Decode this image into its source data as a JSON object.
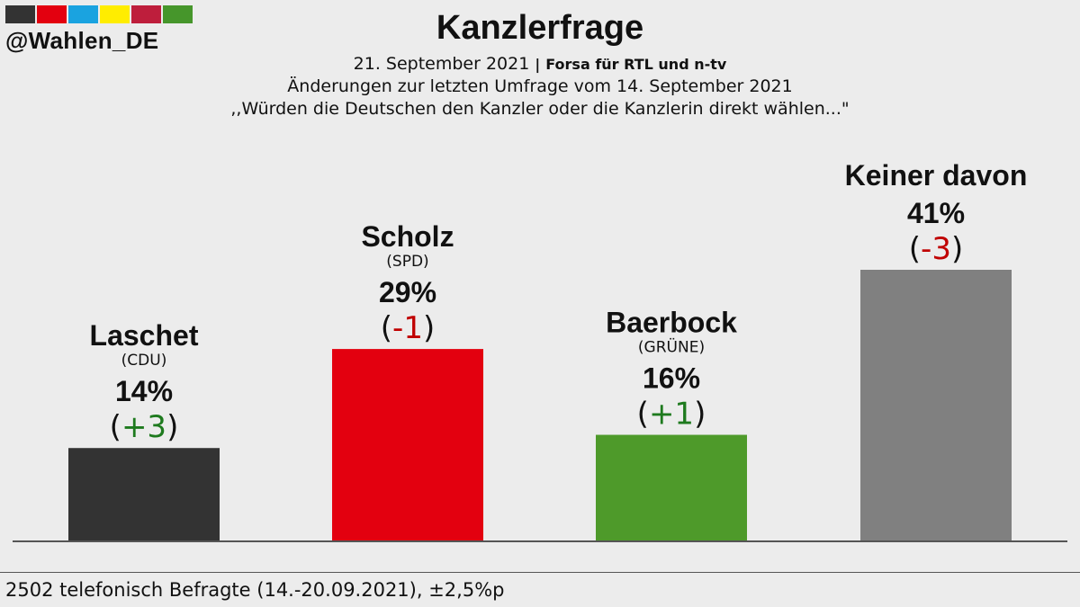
{
  "header": {
    "handle": "@Wahlen_DE",
    "logo_colors": [
      "#333333",
      "#e3000f",
      "#1aa3e0",
      "#ffed00",
      "#be1e3c",
      "#46962b"
    ],
    "title": "Kanzlerfrage",
    "date": "21. September 2021",
    "separator": "|",
    "source": "Forsa für RTL und n-tv",
    "change_note": "Änderungen zur letzten Umfrage vom 14. September 2021",
    "question": ",,Würden die Deutschen den Kanzler oder die Kanzlerin direkt wählen...\""
  },
  "chart_data": {
    "type": "bar",
    "title": "Kanzlerfrage",
    "categories": [
      "Laschet",
      "Scholz",
      "Baerbock",
      "Keiner davon"
    ],
    "parties": [
      "(CDU)",
      "(SPD)",
      "(GRÜNE)",
      ""
    ],
    "values": [
      14,
      29,
      16,
      41
    ],
    "value_labels": [
      "14%",
      "29%",
      "16%",
      "41%"
    ],
    "changes": [
      3,
      -1,
      1,
      -3
    ],
    "change_labels": [
      "+3",
      "-1",
      "+1",
      "-3"
    ],
    "colors": [
      "#333333",
      "#e3000f",
      "#4e9a2a",
      "#808080"
    ],
    "change_colors": {
      "positive": "#1e7a1e",
      "negative": "#c00000"
    },
    "unit": "%"
  },
  "footer": {
    "note": "2502 telefonisch Befragte (14.-20.09.2021), ±2,5%p"
  }
}
